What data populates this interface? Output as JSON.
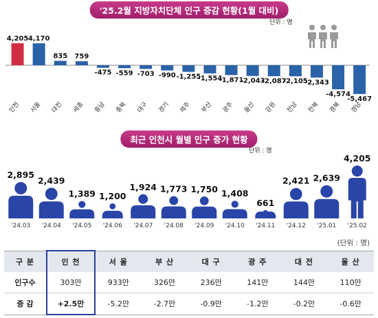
{
  "chart_data": [
    {
      "type": "bar",
      "title": "'25.2월 지방자치단체 인구 증감 현황(1월 대비)",
      "unit": "단위 : 명",
      "categories": [
        "인천",
        "서울",
        "대전",
        "세종",
        "충남",
        "충북",
        "대구",
        "경기",
        "제주",
        "부산",
        "광주",
        "울산",
        "강원",
        "전남",
        "전북",
        "경북",
        "경남"
      ],
      "values": [
        4205,
        4170,
        835,
        759,
        -475,
        -559,
        -703,
        -990,
        -1255,
        -1554,
        -1871,
        -2043,
        -2087,
        -2105,
        -2343,
        -4574,
        -5467
      ],
      "value_labels": [
        "4,205",
        "4,170",
        "835",
        "759",
        "-475",
        "-559",
        "-703",
        "-990",
        "-1,255",
        "-1,554",
        "-1,871",
        "-2,043",
        "-2,087",
        "-2,105",
        "-2,343",
        "-4,574",
        "-5,467"
      ],
      "highlight_category": "인천",
      "colors": {
        "highlight": "#d12e44",
        "positive": "#2a63a8",
        "negative": "#2a63a8"
      },
      "ylim": [
        -5467,
        4205
      ]
    },
    {
      "type": "pictogram",
      "title": "최근 인천시 월별 인구 증가 현황",
      "unit": "단위 : 명",
      "categories": [
        "'24.03",
        "'24.04",
        "'24.05",
        "'24.06",
        "'24.07",
        "'24.08",
        "'24.09",
        "'24.10",
        "'24.11",
        "'24.12",
        "'25.01",
        "'25.02"
      ],
      "values": [
        2895,
        2439,
        1389,
        1200,
        1924,
        1773,
        1750,
        1408,
        661,
        2421,
        2639,
        4205
      ],
      "value_labels": [
        "2,895",
        "2,439",
        "1,389",
        "1,200",
        "1,924",
        "1,773",
        "1,750",
        "1,408",
        "661",
        "2,421",
        "2,639",
        "4,205"
      ],
      "colors": {
        "figure": "#2a45a8"
      }
    }
  ],
  "table": {
    "unit": "(단위 : 명)",
    "headers": [
      "구 분",
      "인 천",
      "서 울",
      "부 산",
      "대 구",
      "광 주",
      "대 전",
      "울 산"
    ],
    "rows": [
      [
        "인구수",
        "303만",
        "933만",
        "326만",
        "236만",
        "141만",
        "144만",
        "110만"
      ],
      [
        "증 감",
        "+2.5만",
        "-5.2만",
        "-2.7만",
        "-0.9만",
        "-1.2만",
        "-0.2만",
        "-0.6만"
      ]
    ]
  },
  "icons": {
    "people": "people-group-icon",
    "person": "person-icon"
  }
}
